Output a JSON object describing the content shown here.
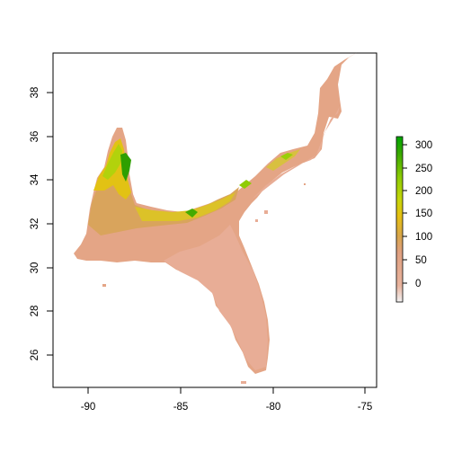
{
  "map": {
    "x_ticks": [
      "-90",
      "-85",
      "-80",
      "-75"
    ],
    "y_ticks": [
      "26",
      "28",
      "30",
      "32",
      "34",
      "36",
      "38"
    ],
    "legend_ticks": [
      "0",
      "50",
      "100",
      "150",
      "200",
      "250",
      "300"
    ],
    "legend_range": [
      -25,
      320
    ],
    "legend_colors": [
      "#f2f2f2",
      "#e8b39d",
      "#e0a080",
      "#d8a64a",
      "#e6c012",
      "#c6d60a",
      "#8fcc04",
      "#38a800",
      "#00a600"
    ],
    "lon_range": [
      -92,
      -74.6
    ],
    "lat_range": [
      24.5,
      39.8
    ]
  }
}
